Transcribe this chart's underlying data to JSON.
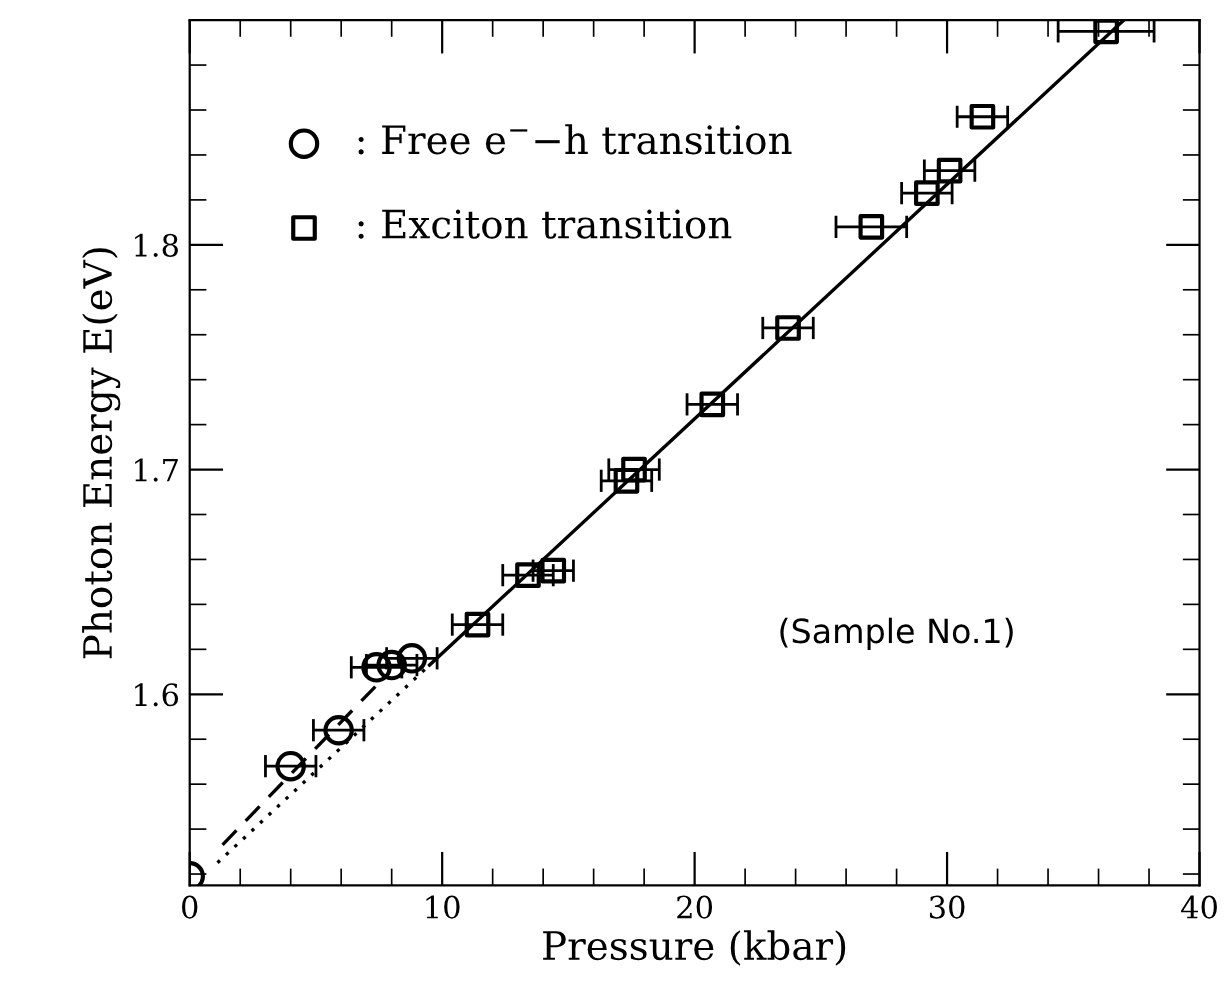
{
  "chart_data": {
    "type": "scatter",
    "xlabel": "Pressure (kbar)",
    "ylabel": "Photon Energy E(eV)",
    "xlim": [
      0,
      40
    ],
    "ylim": [
      1.515,
      1.9
    ],
    "xticks": [
      0,
      {
        "value": 2,
        "label": null
      },
      {
        "value": 4,
        "label": null
      },
      {
        "value": 6,
        "label": null
      },
      {
        "value": 8,
        "label": null
      },
      10,
      {
        "value": 12,
        "label": null
      },
      {
        "value": 14,
        "label": null
      },
      {
        "value": 16,
        "label": null
      },
      {
        "value": 18,
        "label": null
      },
      20,
      {
        "value": 22,
        "label": null
      },
      {
        "value": 24,
        "label": null
      },
      {
        "value": 26,
        "label": null
      },
      {
        "value": 28,
        "label": null
      },
      30,
      {
        "value": 32,
        "label": null
      },
      {
        "value": 34,
        "label": null
      },
      {
        "value": 36,
        "label": null
      },
      {
        "value": 38,
        "label": null
      },
      40
    ],
    "yticks": [
      {
        "value": 1.52,
        "label": null
      },
      {
        "value": 1.54,
        "label": null
      },
      {
        "value": 1.56,
        "label": null
      },
      {
        "value": 1.58,
        "label": null
      },
      1.6,
      {
        "value": 1.62,
        "label": null
      },
      {
        "value": 1.64,
        "label": null
      },
      {
        "value": 1.66,
        "label": null
      },
      {
        "value": 1.68,
        "label": null
      },
      1.7,
      {
        "value": 1.72,
        "label": null
      },
      {
        "value": 1.74,
        "label": null
      },
      {
        "value": 1.76,
        "label": null
      },
      {
        "value": 1.78,
        "label": null
      },
      1.8,
      {
        "value": 1.82,
        "label": null
      },
      {
        "value": 1.84,
        "label": null
      },
      {
        "value": 1.86,
        "label": null
      },
      {
        "value": 1.88,
        "label": null
      }
    ],
    "grid": false,
    "legend": "top left",
    "series": [
      {
        "name": ": Free e$^{−}$−h transition",
        "marker": "circle",
        "color": "#000000",
        "x": [
          0,
          4.0,
          5.9,
          7.4,
          8.0,
          8.8
        ],
        "values": [
          1.519,
          1.568,
          1.584,
          1.612,
          1.613,
          1.616
        ],
        "xerrors": [
          null,
          1,
          1,
          1,
          1,
          1
        ]
      },
      {
        "name": ": Exciton transition",
        "marker": "square",
        "color": "#000000",
        "x": [
          11.4,
          13.4,
          14.4,
          17.3,
          17.6,
          20.7,
          23.7,
          27.0,
          29.2,
          30.1,
          31.4,
          36.3
        ],
        "values": [
          1.631,
          1.653,
          1.655,
          1.695,
          1.7,
          1.729,
          1.763,
          1.808,
          1.823,
          1.833,
          1.857,
          1.895
        ],
        "xerrors": [
          1,
          1,
          0.8,
          1,
          1,
          1,
          1,
          1.4,
          1,
          1,
          1,
          1.9
        ]
      },
      {
        "type": "line",
        "line_style": "solid",
        "color": "#000000",
        "x": [
          9.5,
          37.0
        ],
        "values": [
          1.613,
          1.9
        ]
      },
      {
        "type": "line",
        "line_style": "dashed",
        "color": "#000000",
        "x": [
          1.3,
          7.4
        ],
        "values": [
          1.533,
          1.604
        ]
      },
      {
        "type": "line",
        "line_style": "dotted",
        "color": "#000000",
        "x": [
          1.1,
          9.5
        ],
        "values": [
          1.525,
          1.613
        ]
      }
    ],
    "annotations": [
      "(Sample No.1)"
    ]
  }
}
